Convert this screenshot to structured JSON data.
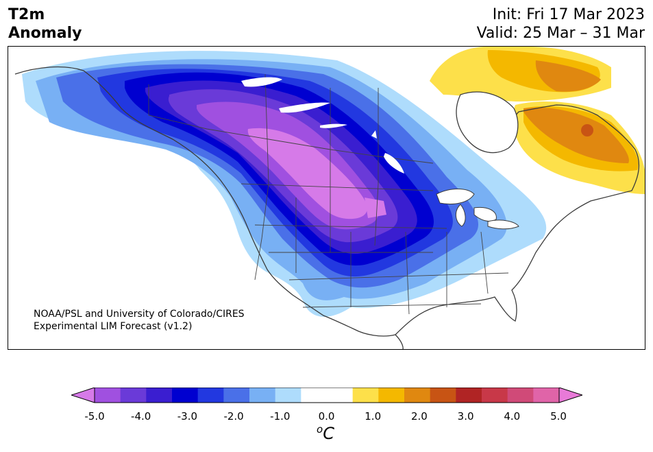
{
  "header": {
    "variable": "T2m",
    "subtitle": "Anomaly",
    "init": "Init: Fri 17 Mar 2023",
    "valid": "Valid: 25 Mar – 31 Mar"
  },
  "map": {
    "region": "North America",
    "credit_line1": "NOAA/PSL and University of Colorado/CIRES",
    "credit_line2": "Experimental LIM Forecast (v1.2)"
  },
  "colorbar": {
    "unit_base": "C",
    "unit_super": "o",
    "ticks": [
      "-5.0",
      "-4.0",
      "-3.0",
      "-2.0",
      "-1.0",
      "0.0",
      "1.0",
      "2.0",
      "3.0",
      "4.0",
      "5.0"
    ],
    "min": -5.0,
    "max": 5.0,
    "step": 0.5,
    "colors": [
      "#d67ae8",
      "#a050e0",
      "#6a3ad8",
      "#3a1ed0",
      "#0000d0",
      "#2238e0",
      "#4a70e8",
      "#78b0f4",
      "#aedcfc",
      "#ffffff",
      "#ffffff",
      "#fde04a",
      "#f4b800",
      "#e08810",
      "#c85414",
      "#b02424",
      "#c83848",
      "#d04a78",
      "#e064a8",
      "#e87ad8"
    ]
  }
}
